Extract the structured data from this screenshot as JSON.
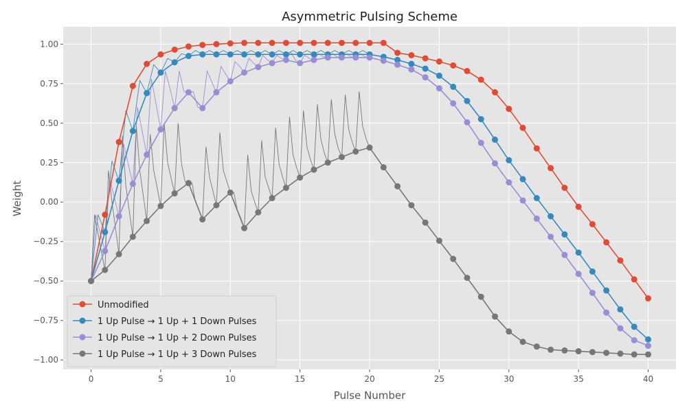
{
  "chart_data": {
    "type": "line",
    "title": "Asymmetric Pulsing Scheme",
    "xlabel": "Pulse Number",
    "ylabel": "Weight",
    "xlim": [
      -2,
      42
    ],
    "ylim": [
      -1.06,
      1.11
    ],
    "xticks": [
      0,
      5,
      10,
      15,
      20,
      25,
      30,
      35,
      40
    ],
    "yticks": [
      -1.0,
      -0.75,
      -0.5,
      -0.25,
      0.0,
      0.25,
      0.5,
      0.75,
      1.0
    ],
    "ytick_labels": [
      "−1.00",
      "−0.75",
      "−0.50",
      "−0.25",
      "0.00",
      "0.25",
      "0.50",
      "0.75",
      "1.00"
    ],
    "grid": true,
    "legend_position": "lower-left",
    "background": "#e5e5e5",
    "x": [
      0,
      1,
      2,
      3,
      4,
      5,
      6,
      7,
      8,
      9,
      10,
      11,
      12,
      13,
      14,
      15,
      16,
      17,
      18,
      19,
      20,
      21,
      22,
      23,
      24,
      25,
      26,
      27,
      28,
      29,
      30,
      31,
      32,
      33,
      34,
      35,
      36,
      37,
      38,
      39,
      40
    ],
    "series": [
      {
        "name": "Unmodified",
        "color": "#e24a33",
        "values": [
          -0.5,
          -0.08,
          0.38,
          0.735,
          0.875,
          0.935,
          0.965,
          0.985,
          0.995,
          1.0,
          1.005,
          1.008,
          1.008,
          1.008,
          1.008,
          1.008,
          1.008,
          1.008,
          1.008,
          1.008,
          1.008,
          1.008,
          0.945,
          0.93,
          0.91,
          0.89,
          0.865,
          0.83,
          0.775,
          0.695,
          0.59,
          0.47,
          0.34,
          0.215,
          0.09,
          -0.03,
          -0.14,
          -0.255,
          -0.37,
          -0.49,
          -0.61
        ]
      },
      {
        "name": "1 Up Pulse → 1 Up + 1 Down Pulses",
        "color": "#348abd",
        "values": [
          -0.5,
          -0.19,
          0.135,
          0.45,
          0.69,
          0.82,
          0.885,
          0.925,
          0.935,
          0.935,
          0.935,
          0.935,
          0.935,
          0.935,
          0.935,
          0.935,
          0.935,
          0.935,
          0.935,
          0.935,
          0.935,
          0.92,
          0.9,
          0.875,
          0.845,
          0.8,
          0.73,
          0.64,
          0.525,
          0.395,
          0.265,
          0.145,
          0.025,
          -0.09,
          -0.205,
          -0.32,
          -0.44,
          -0.56,
          -0.68,
          -0.79,
          -0.87
        ],
        "sub_pulses": [
          -0.5,
          -0.08,
          -0.19,
          0.26,
          0.135,
          0.58,
          0.45,
          0.77,
          0.69,
          0.87,
          0.82,
          0.91,
          0.885,
          0.94,
          0.925,
          0.96,
          0.935,
          0.96,
          0.935,
          0.96,
          0.935,
          0.96,
          0.935,
          0.96,
          0.935,
          0.96,
          0.935,
          0.96,
          0.935,
          0.96,
          0.935,
          0.96,
          0.935,
          0.96,
          0.935,
          0.96,
          0.935,
          0.96,
          0.935,
          0.96,
          0.935
        ]
      },
      {
        "name": "1 Up Pulse → 1 Up + 2 Down Pulses",
        "color": "#988ed5",
        "values": [
          -0.5,
          -0.31,
          -0.09,
          0.115,
          0.3,
          0.46,
          0.595,
          0.695,
          0.595,
          0.695,
          0.765,
          0.82,
          0.855,
          0.88,
          0.9,
          0.88,
          0.9,
          0.915,
          0.915,
          0.915,
          0.915,
          0.895,
          0.87,
          0.84,
          0.79,
          0.72,
          0.625,
          0.505,
          0.375,
          0.245,
          0.125,
          0.01,
          -0.105,
          -0.22,
          -0.335,
          -0.455,
          -0.575,
          -0.7,
          -0.8,
          -0.875,
          -0.91
        ],
        "sub_pulses": [
          -0.5,
          -0.08,
          -0.2,
          -0.31,
          0.15,
          0.03,
          -0.09,
          0.37,
          0.24,
          0.115,
          0.6,
          0.45,
          0.3,
          0.78,
          0.62,
          0.46,
          0.83,
          0.72,
          0.595,
          0.83,
          0.7,
          0.695,
          0.7,
          0.6,
          0.595,
          0.83,
          0.76,
          0.695,
          0.86,
          0.81,
          0.765,
          0.89,
          0.86,
          0.82,
          0.91,
          0.88,
          0.855,
          0.93,
          0.9,
          0.88,
          0.93,
          0.91,
          0.9,
          0.95,
          0.9,
          0.88,
          0.93,
          0.91,
          0.9,
          0.94,
          0.92,
          0.915,
          0.94,
          0.92,
          0.915,
          0.94,
          0.92,
          0.915,
          0.94,
          0.92,
          0.915
        ]
      },
      {
        "name": "1 Up Pulse → 1 Up + 3 Down Pulses",
        "color": "#777777",
        "values": [
          -0.5,
          -0.43,
          -0.33,
          -0.22,
          -0.12,
          -0.025,
          0.055,
          0.12,
          -0.11,
          -0.02,
          0.06,
          -0.165,
          -0.065,
          0.025,
          0.09,
          0.155,
          0.205,
          0.25,
          0.285,
          0.32,
          0.345,
          0.22,
          0.1,
          -0.02,
          -0.13,
          -0.245,
          -0.36,
          -0.48,
          -0.6,
          -0.725,
          -0.82,
          -0.885,
          -0.915,
          -0.935,
          -0.94,
          -0.945,
          -0.95,
          -0.955,
          -0.96,
          -0.965,
          -0.965
        ],
        "sub_pulses": [
          -0.5,
          -0.08,
          -0.2,
          -0.32,
          -0.43,
          0.2,
          0.0,
          -0.16,
          -0.33,
          0.42,
          0.1,
          -0.06,
          -0.22,
          0.48,
          0.2,
          0.04,
          -0.12,
          0.43,
          0.2,
          0.09,
          -0.025,
          0.5,
          0.25,
          0.15,
          0.055,
          0.5,
          0.24,
          0.13,
          0.12,
          0.12,
          0.0,
          -0.05,
          -0.11,
          0.35,
          0.16,
          0.07,
          -0.02,
          0.44,
          0.2,
          0.13,
          0.06,
          0.06,
          -0.05,
          -0.1,
          -0.165,
          0.3,
          0.07,
          0.0,
          -0.065,
          0.39,
          0.16,
          0.09,
          0.025,
          0.47,
          0.24,
          0.16,
          0.09,
          0.54,
          0.3,
          0.22,
          0.155,
          0.58,
          0.35,
          0.27,
          0.205,
          0.62,
          0.4,
          0.31,
          0.25,
          0.65,
          0.43,
          0.34,
          0.285,
          0.68,
          0.46,
          0.38,
          0.32,
          0.7,
          0.48,
          0.4,
          0.345
        ]
      }
    ]
  }
}
